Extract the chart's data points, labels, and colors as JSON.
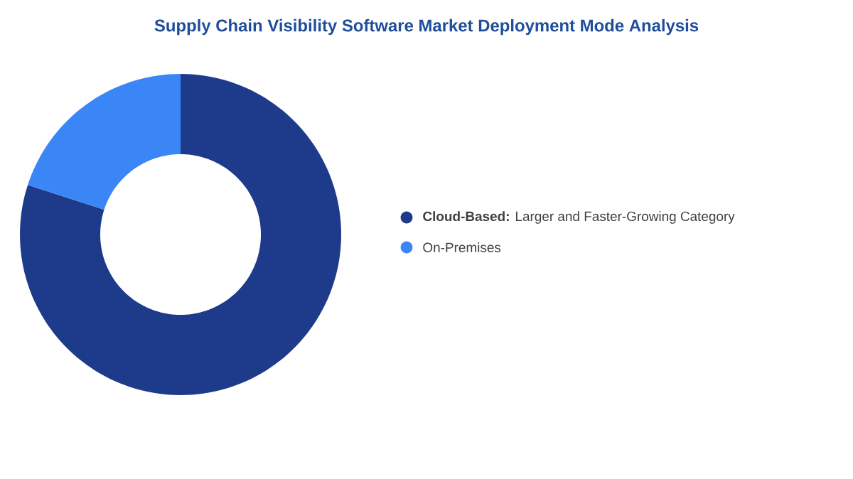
{
  "chart_data": {
    "type": "donut",
    "title": "Supply Chain Visibility Software Market Deployment Mode Analysis",
    "categories": [
      "**Cloud-Based:** Larger and Faster-Growing Category",
      "On-Premises"
    ],
    "values": [
      80,
      20
    ],
    "colors": [
      "#1e3a8a",
      "#3b86f7"
    ],
    "legend": "right"
  }
}
